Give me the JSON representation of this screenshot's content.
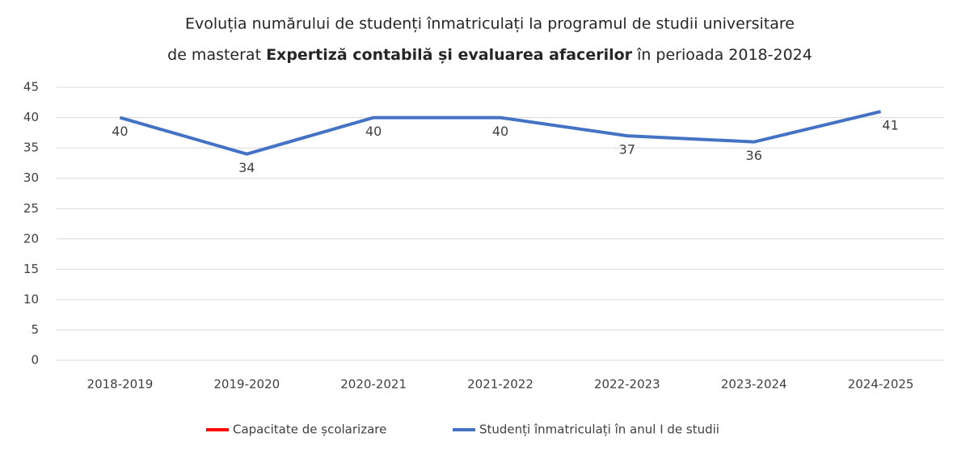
{
  "chart_data": {
    "type": "line",
    "title": [
      "Evoluția numărului de studenți înmatriculați la programul de studii universitare",
      "de masterat ",
      "Expertiză contabilă și evaluarea afacerilor",
      " în perioada 2018-2024"
    ],
    "categories": [
      "2018-2019",
      "2019-2020",
      "2020-2021",
      "2021-2022",
      "2022-2023",
      "2023-2024",
      "2024-2025"
    ],
    "series": [
      {
        "name": "Capacitate de școlarizare",
        "color": "#ff0000",
        "values": [
          null,
          null,
          null,
          null,
          null,
          null,
          null
        ]
      },
      {
        "name": "Studenți înmatriculați în anul I de studii",
        "color": "#4472c4",
        "values": [
          40,
          34,
          40,
          40,
          37,
          36,
          41
        ]
      }
    ],
    "ylim": [
      0,
      48
    ],
    "yticks": [
      0,
      5,
      10,
      15,
      20,
      25,
      30,
      35,
      40,
      45
    ],
    "grid": true,
    "legend": "bottom"
  }
}
